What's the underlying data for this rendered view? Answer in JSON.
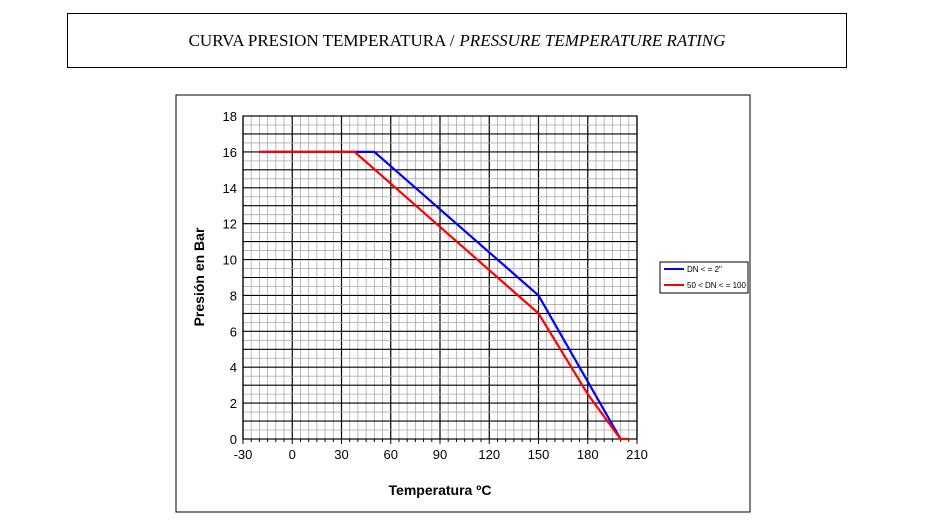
{
  "header": {
    "title": "CURVA PRESION TEMPERATURA /",
    "title_en": "PRESSURE TEMPERATURE RATING"
  },
  "chart_data": {
    "type": "line",
    "title": "CURVA PRESION TEMPERATURA / PRESSURE TEMPERATURE RATING",
    "xlabel": "Temperatura ºC",
    "ylabel": "Presión en Bar",
    "xlim": [
      -30,
      210
    ],
    "ylim": [
      0,
      18
    ],
    "xticks": [
      -30,
      0,
      30,
      60,
      90,
      120,
      150,
      180,
      210
    ],
    "yticks": [
      0,
      2,
      4,
      6,
      8,
      10,
      12,
      14,
      16,
      18
    ],
    "grid": true,
    "legend_position": "right",
    "series": [
      {
        "name": "DN < = 2\"",
        "color": "#0000ff",
        "x": [
          -20,
          50,
          150,
          180,
          200
        ],
        "y": [
          16,
          16,
          8,
          3.2,
          0
        ]
      },
      {
        "name": "50 < DN < = 100",
        "color": "#ff0000",
        "x": [
          -20,
          38,
          150,
          180,
          200,
          205
        ],
        "y": [
          16,
          16,
          7,
          2.5,
          0,
          0
        ]
      }
    ]
  }
}
